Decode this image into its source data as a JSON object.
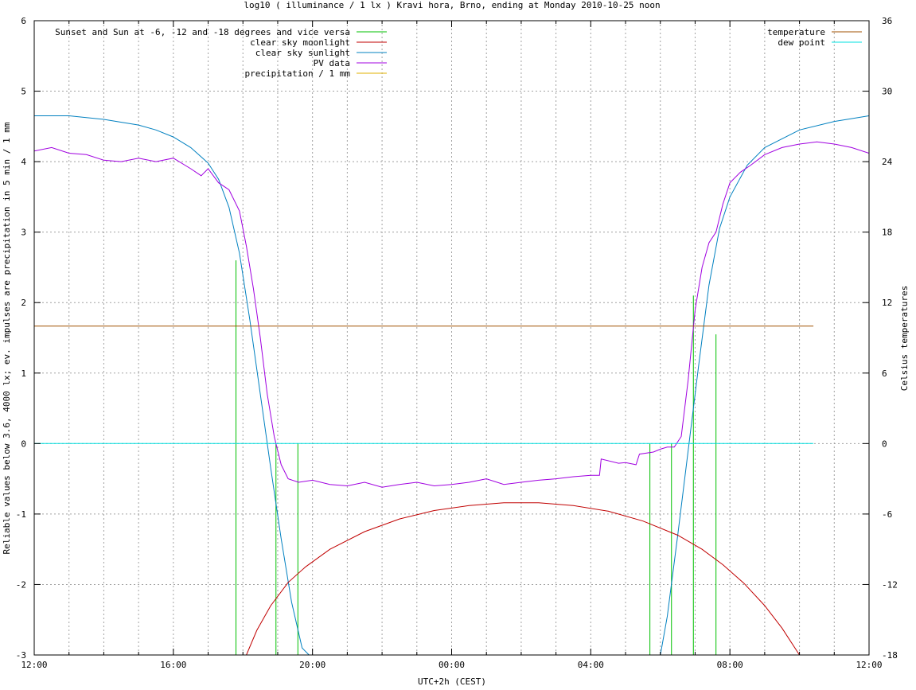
{
  "chart_data": {
    "type": "line",
    "title": "log10 ( illuminance / 1 lx ) Kravi hora, Brno, ending at Monday 2010-10-25 noon",
    "xlabel": "UTC+2h (CEST)",
    "ylabel": "Reliable values below 3.6, 4000 lx; ev. impulses are precipitation in 5 min / 1 mm",
    "y2label": "Celsius temperatures",
    "xlim": [
      0,
      24
    ],
    "ylim": [
      -3,
      6
    ],
    "y2lim": [
      -18,
      36
    ],
    "x_ticks": [
      {
        "x": 0,
        "label": "12:00"
      },
      {
        "x": 4,
        "label": "16:00"
      },
      {
        "x": 8,
        "label": "20:00"
      },
      {
        "x": 12,
        "label": "00:00"
      },
      {
        "x": 16,
        "label": "04:00"
      },
      {
        "x": 20,
        "label": "08:00"
      },
      {
        "x": 24,
        "label": "12:00"
      }
    ],
    "y_ticks": [
      "-3",
      "-2",
      "-1",
      "0",
      "1",
      "2",
      "3",
      "4",
      "5",
      "6"
    ],
    "y2_ticks": [
      "-18",
      "-12",
      "-6",
      "0",
      "6",
      "12",
      "18",
      "24",
      "30",
      "36"
    ],
    "grid": true,
    "legend_left": [
      {
        "label": "Sunset and Sun at -6, -12 and -18 degrees and vice versa",
        "color": "#00c000"
      },
      {
        "label": "clear sky moonlight",
        "color": "#c00000"
      },
      {
        "label": "clear sky sunlight",
        "color": "#0080c0"
      },
      {
        "label": "PV data",
        "color": "#a000e0"
      },
      {
        "label": "precipitation / 1 mm",
        "color": "#e0b000"
      }
    ],
    "legend_right": [
      {
        "label": "temperature",
        "color": "#a05000"
      },
      {
        "label": "dew point",
        "color": "#00e0e0"
      }
    ],
    "sun_events_x": [
      5.8,
      6.95,
      7.58,
      17.7,
      18.32,
      18.95,
      19.6
    ],
    "sun_events_y": [
      2.6,
      0,
      0,
      0,
      0,
      2.1,
      1.55
    ],
    "series": [
      {
        "name": "clear sky sunlight",
        "color": "#0080c0",
        "x": [
          0,
          1,
          2,
          3,
          3.5,
          4,
          4.5,
          5,
          5.3,
          5.6,
          5.9,
          6.2,
          6.5,
          6.8,
          7.1,
          7.4,
          7.7,
          7.9,
          18.0,
          18.2,
          18.5,
          18.8,
          19.1,
          19.4,
          19.7,
          20.0,
          20.5,
          21,
          22,
          23,
          24
        ],
        "y": [
          4.65,
          4.65,
          4.6,
          4.52,
          4.45,
          4.35,
          4.2,
          3.98,
          3.75,
          3.35,
          2.7,
          1.75,
          0.7,
          -0.35,
          -1.35,
          -2.25,
          -2.9,
          -3.0,
          -3.0,
          -2.45,
          -1.3,
          -0.1,
          1.1,
          2.25,
          3.05,
          3.5,
          3.95,
          4.2,
          4.45,
          4.57,
          4.65
        ]
      },
      {
        "name": "clear sky moonlight",
        "color": "#c00000",
        "x": [
          6.1,
          6.4,
          6.8,
          7.3,
          7.8,
          8.5,
          9.5,
          10.5,
          11.5,
          12.5,
          13.5,
          14.5,
          15.5,
          16.5,
          17.5,
          18.5,
          19.2,
          19.8,
          20.4,
          21.0,
          21.5,
          22.0
        ],
        "y": [
          -3.0,
          -2.65,
          -2.3,
          -1.97,
          -1.75,
          -1.5,
          -1.25,
          -1.07,
          -0.95,
          -0.88,
          -0.84,
          -0.84,
          -0.88,
          -0.96,
          -1.1,
          -1.3,
          -1.5,
          -1.72,
          -1.98,
          -2.3,
          -2.62,
          -3.0
        ]
      },
      {
        "name": "PV data",
        "color": "#a000e0",
        "x": [
          0,
          0.5,
          1,
          1.5,
          2,
          2.5,
          3,
          3.5,
          4,
          4.5,
          4.8,
          5,
          5.3,
          5.6,
          5.9,
          6.1,
          6.3,
          6.5,
          6.7,
          6.9,
          7.1,
          7.3,
          7.6,
          8,
          8.5,
          9,
          9.5,
          10,
          10.5,
          11,
          11.5,
          12,
          12.5,
          13,
          13.5,
          14,
          14.5,
          15,
          15.5,
          16,
          16.25,
          16.3,
          16.8,
          17.0,
          17.3,
          17.4,
          17.8,
          18.0,
          18.2,
          18.4,
          18.6,
          18.8,
          19.0,
          19.2,
          19.4,
          19.6,
          19.8,
          20.0,
          20.3,
          20.6,
          21,
          21.5,
          22,
          22.5,
          23,
          23.5,
          24
        ],
        "y": [
          4.15,
          4.2,
          4.12,
          4.1,
          4.02,
          4.0,
          4.05,
          4.0,
          4.05,
          3.9,
          3.8,
          3.9,
          3.7,
          3.6,
          3.3,
          2.8,
          2.2,
          1.5,
          0.7,
          0.1,
          -0.3,
          -0.5,
          -0.55,
          -0.52,
          -0.58,
          -0.6,
          -0.55,
          -0.62,
          -0.58,
          -0.55,
          -0.6,
          -0.58,
          -0.55,
          -0.5,
          -0.58,
          -0.55,
          -0.52,
          -0.5,
          -0.47,
          -0.45,
          -0.45,
          -0.22,
          -0.28,
          -0.27,
          -0.3,
          -0.15,
          -0.12,
          -0.08,
          -0.05,
          -0.05,
          0.1,
          0.9,
          1.9,
          2.5,
          2.85,
          3.0,
          3.4,
          3.7,
          3.85,
          3.95,
          4.1,
          4.2,
          4.25,
          4.28,
          4.25,
          4.2,
          4.12
        ]
      },
      {
        "name": "temperature",
        "color": "#a05000",
        "axis": "y2",
        "x": [
          0,
          22.4
        ],
        "y": [
          10.0,
          10.0
        ]
      },
      {
        "name": "dew point",
        "color": "#00e0e0",
        "axis": "y2",
        "x": [
          0,
          22.4
        ],
        "y": [
          0,
          0
        ]
      }
    ]
  }
}
